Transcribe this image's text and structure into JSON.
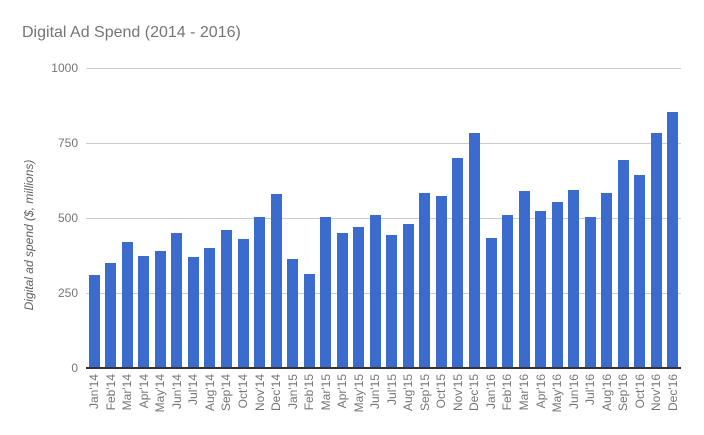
{
  "chart_data": {
    "type": "bar",
    "title": "Digital Ad Spend (2014 - 2016)",
    "ylabel": "Digital ad spend ($, millions)",
    "xlabel": "",
    "categories": [
      "Jan'14",
      "Feb'14",
      "Mar'14",
      "Apr'14",
      "May'14",
      "Jun'14",
      "Jul'14",
      "Aug'14",
      "Sep'14",
      "Oct'14",
      "Nov'14",
      "Dec'14",
      "Jan'15",
      "Feb'15",
      "Mar'15",
      "Apr'15",
      "May'15",
      "Jun'15",
      "Jul'15",
      "Aug'15",
      "Sep'15",
      "Oct'15",
      "Nov'15",
      "Dec'15",
      "Jan'16",
      "Feb'16",
      "Mar'16",
      "Apr'16",
      "May'16",
      "Jun'16",
      "Jul'16",
      "Aug'16",
      "Sep'16",
      "Oct'16",
      "Nov'16",
      "Dec'16"
    ],
    "values": [
      310,
      350,
      420,
      375,
      390,
      450,
      370,
      400,
      460,
      430,
      505,
      580,
      365,
      315,
      505,
      450,
      470,
      510,
      445,
      480,
      585,
      575,
      700,
      785,
      435,
      510,
      590,
      525,
      555,
      595,
      505,
      585,
      695,
      645,
      785,
      855
    ],
    "ylim": [
      0,
      1000
    ],
    "yticks": [
      0,
      250,
      500,
      750,
      1000
    ],
    "grid": true,
    "legend": "none",
    "colors": {
      "bar": "#3b6ccd",
      "title": "#757575",
      "tick_label": "#757575",
      "axis_title": "#5f5f5f",
      "gridline": "#cccccc",
      "baseline": "#333333",
      "background": "#ffffff"
    }
  }
}
